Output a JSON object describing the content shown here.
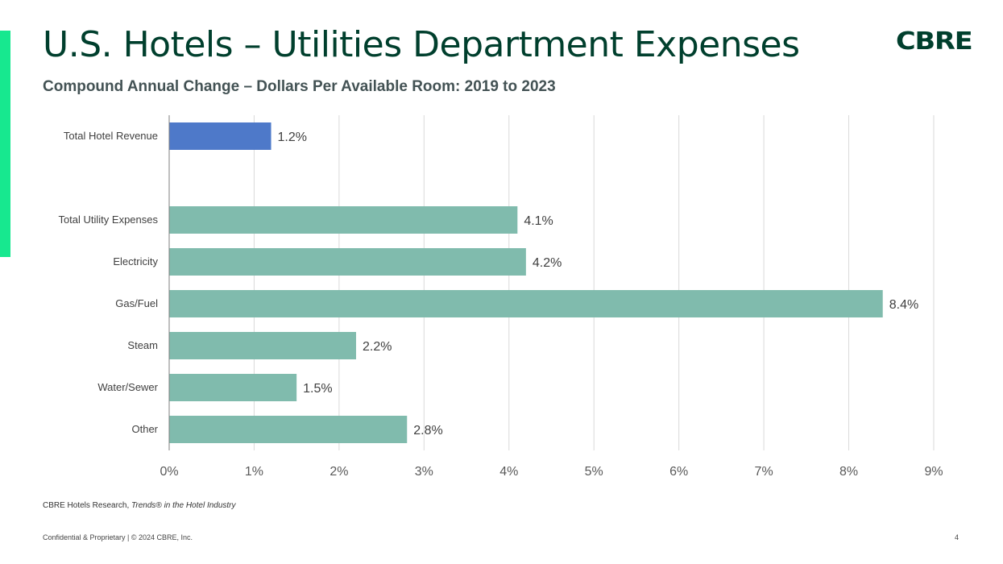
{
  "header": {
    "title": "U.S. Hotels – Utilities Department Expenses",
    "subtitle": "Compound Annual Change – Dollars Per Available Room: 2019 to 2023",
    "logo": "CBRE"
  },
  "source": {
    "prefix": "CBRE Hotels Research, ",
    "italic": "Trends® in the Hotel Industry"
  },
  "footer": {
    "text": "Confidential & Proprietary | © 2024 CBRE, Inc.",
    "page": "4"
  },
  "colors": {
    "title": "#003f2d",
    "accent": "#17e88f",
    "revenue_bar": "#4e79c9",
    "expense_bar": "#80bbad"
  },
  "chart_data": {
    "type": "bar",
    "orientation": "horizontal",
    "categories": [
      "Total Hotel Revenue",
      "",
      "Total Utility Expenses",
      "Electricity",
      "Gas/Fuel",
      "Steam",
      "Water/Sewer",
      "Other"
    ],
    "values": [
      1.2,
      null,
      4.1,
      4.2,
      8.4,
      2.2,
      1.5,
      2.8
    ],
    "data_labels": [
      "1.2%",
      "",
      "4.1%",
      "4.2%",
      "8.4%",
      "2.2%",
      "1.5%",
      "2.8%"
    ],
    "bar_colors": [
      "#4e79c9",
      null,
      "#80bbad",
      "#80bbad",
      "#80bbad",
      "#80bbad",
      "#80bbad",
      "#80bbad"
    ],
    "xlim": [
      0,
      9
    ],
    "xticks": [
      "0%",
      "1%",
      "2%",
      "3%",
      "4%",
      "5%",
      "6%",
      "7%",
      "8%",
      "9%"
    ],
    "grid": "vertical",
    "legend": "none"
  }
}
